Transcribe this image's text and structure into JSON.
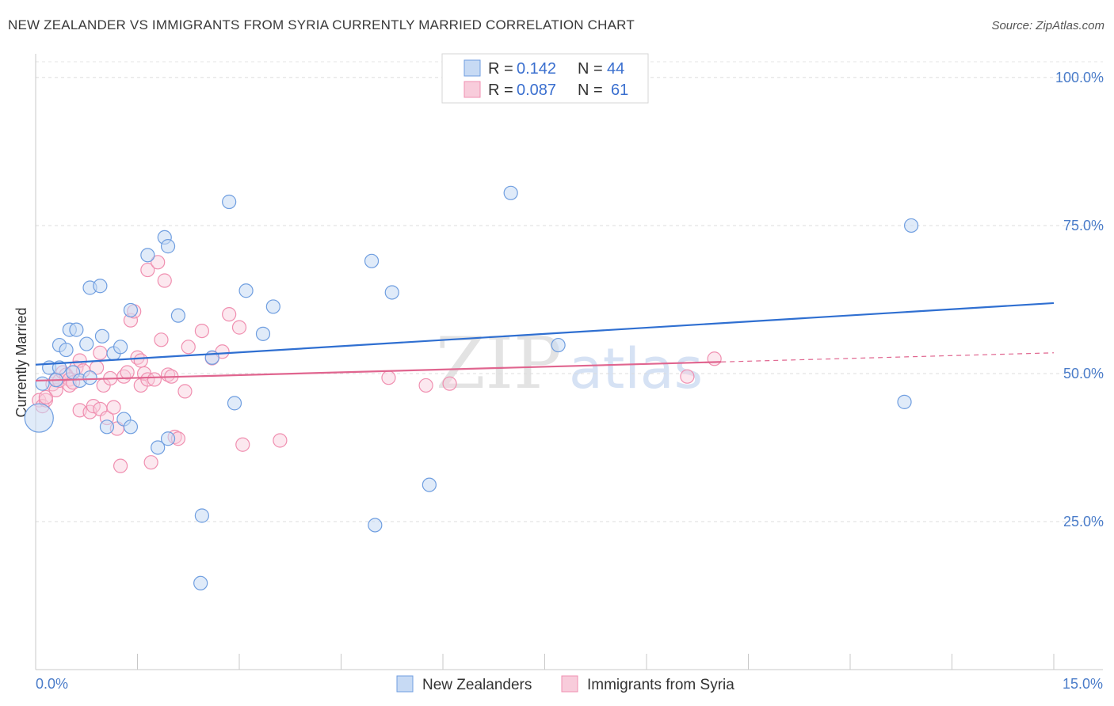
{
  "header": {
    "title": "NEW ZEALANDER VS IMMIGRANTS FROM SYRIA CURRENTLY MARRIED CORRELATION CHART",
    "source": "Source: ZipAtlas.com"
  },
  "watermark": {
    "left": "ZIP",
    "right": "atlas"
  },
  "legend_top": {
    "rows": [
      {
        "r_label": "R =",
        "r_value": "0.142",
        "n_label": "N =",
        "n_value": "44",
        "color": "#6f9ee0"
      },
      {
        "r_label": "R =",
        "r_value": "0.087",
        "n_label": "N =",
        "n_value": "61",
        "color": "#f08fb0"
      }
    ]
  },
  "legend_bottom": {
    "items": [
      {
        "label": "New Zealanders",
        "color": "#6f9ee0"
      },
      {
        "label": "Immigrants from Syria",
        "color": "#f08fb0"
      }
    ]
  },
  "chart_data": {
    "type": "scatter",
    "ylabel": "Currently Married",
    "xlabel": "",
    "xlim": [
      0,
      15
    ],
    "ylim": [
      0,
      104
    ],
    "x_tick_labels": [
      "0.0%",
      "15.0%"
    ],
    "y_ticks": [
      25,
      50,
      75,
      100
    ],
    "y_tick_labels": [
      "25.0%",
      "50.0%",
      "75.0%",
      "100.0%"
    ],
    "grid": true,
    "colors": {
      "blue": "#6f9ee0",
      "pink": "#f08fb0",
      "blue_line": "#2f6fd1",
      "pink_line": "#e0658f"
    },
    "series": [
      {
        "name": "New Zealanders",
        "color": "blue",
        "trend": {
          "x": [
            0,
            15
          ],
          "y": [
            51.5,
            61.9
          ],
          "dashed_from": null
        },
        "points": [
          [
            0.1,
            48.3
          ],
          [
            0.2,
            51.0
          ],
          [
            0.3,
            48.9
          ],
          [
            0.35,
            51.0
          ],
          [
            0.35,
            54.8
          ],
          [
            0.45,
            54.0
          ],
          [
            0.5,
            57.4
          ],
          [
            0.6,
            57.4
          ],
          [
            0.55,
            50.2
          ],
          [
            0.65,
            48.8
          ],
          [
            0.75,
            55.0
          ],
          [
            0.8,
            49.3
          ],
          [
            0.8,
            64.5
          ],
          [
            0.95,
            64.8
          ],
          [
            0.98,
            56.3
          ],
          [
            1.05,
            41.0
          ],
          [
            1.15,
            53.4
          ],
          [
            1.25,
            54.5
          ],
          [
            1.3,
            42.3
          ],
          [
            1.4,
            41.0
          ],
          [
            1.4,
            60.7
          ],
          [
            1.65,
            70.0
          ],
          [
            1.8,
            37.5
          ],
          [
            1.9,
            73.0
          ],
          [
            1.95,
            71.5
          ],
          [
            1.95,
            39.0
          ],
          [
            2.1,
            59.8
          ],
          [
            2.45,
            26.0
          ],
          [
            2.43,
            14.6
          ],
          [
            2.6,
            52.7
          ],
          [
            2.85,
            79.0
          ],
          [
            2.93,
            45.0
          ],
          [
            3.1,
            64.0
          ],
          [
            3.35,
            56.7
          ],
          [
            3.5,
            61.3
          ],
          [
            4.95,
            69.0
          ],
          [
            5.0,
            24.4
          ],
          [
            5.25,
            63.7
          ],
          [
            5.8,
            31.2
          ],
          [
            7.0,
            80.5
          ],
          [
            7.7,
            54.8
          ],
          [
            12.8,
            45.2
          ],
          [
            12.9,
            75.0
          ],
          [
            0.05,
            42.5
          ]
        ]
      },
      {
        "name": "Immigrants from Syria",
        "color": "pink",
        "trend": {
          "x": [
            0,
            15
          ],
          "y": [
            48.8,
            53.5
          ],
          "dashed_from": 10.1
        },
        "points": [
          [
            0.05,
            45.5
          ],
          [
            0.1,
            44.5
          ],
          [
            0.15,
            45.5
          ],
          [
            0.15,
            46.0
          ],
          [
            0.25,
            48.2
          ],
          [
            0.3,
            47.2
          ],
          [
            0.3,
            49.0
          ],
          [
            0.35,
            48.8
          ],
          [
            0.4,
            50.2
          ],
          [
            0.45,
            49.8
          ],
          [
            0.5,
            49.0
          ],
          [
            0.5,
            48.0
          ],
          [
            0.55,
            48.5
          ],
          [
            0.6,
            51.0
          ],
          [
            0.65,
            52.2
          ],
          [
            0.65,
            43.8
          ],
          [
            0.7,
            50.5
          ],
          [
            0.8,
            43.5
          ],
          [
            0.85,
            44.5
          ],
          [
            0.9,
            51.0
          ],
          [
            0.95,
            44.0
          ],
          [
            0.95,
            53.5
          ],
          [
            1.0,
            48.0
          ],
          [
            1.05,
            42.5
          ],
          [
            1.1,
            49.2
          ],
          [
            1.15,
            44.3
          ],
          [
            1.2,
            40.7
          ],
          [
            1.25,
            34.4
          ],
          [
            1.3,
            49.5
          ],
          [
            1.35,
            50.2
          ],
          [
            1.4,
            59.0
          ],
          [
            1.45,
            60.5
          ],
          [
            1.5,
            52.7
          ],
          [
            1.55,
            52.2
          ],
          [
            1.55,
            48.0
          ],
          [
            1.6,
            50.0
          ],
          [
            1.65,
            49.0
          ],
          [
            1.65,
            67.5
          ],
          [
            1.7,
            35.0
          ],
          [
            1.75,
            49.0
          ],
          [
            1.8,
            68.8
          ],
          [
            1.85,
            55.7
          ],
          [
            1.9,
            65.7
          ],
          [
            1.95,
            49.8
          ],
          [
            2.0,
            49.5
          ],
          [
            2.05,
            39.3
          ],
          [
            2.1,
            39.0
          ],
          [
            2.2,
            47.0
          ],
          [
            2.25,
            54.5
          ],
          [
            2.45,
            57.2
          ],
          [
            2.6,
            52.6
          ],
          [
            2.75,
            53.7
          ],
          [
            2.85,
            60.0
          ],
          [
            3.0,
            57.8
          ],
          [
            3.05,
            38.0
          ],
          [
            3.6,
            38.7
          ],
          [
            5.2,
            49.3
          ],
          [
            5.75,
            48.0
          ],
          [
            6.1,
            48.3
          ],
          [
            9.6,
            49.5
          ],
          [
            10.0,
            52.5
          ]
        ]
      }
    ]
  }
}
